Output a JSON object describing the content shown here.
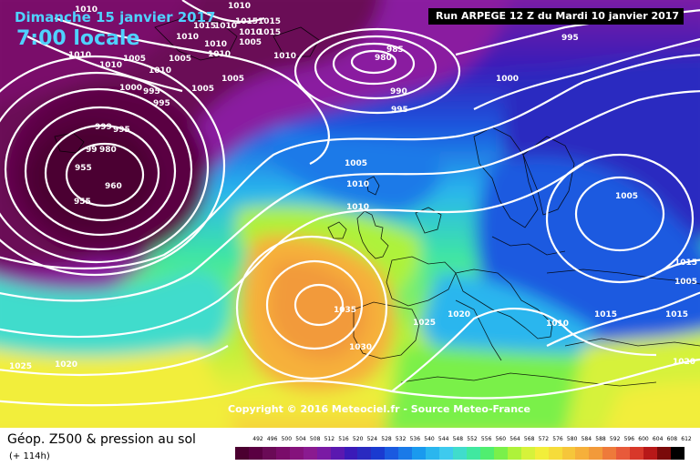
{
  "header": {
    "date": "Dimanche 15 janvier 2017",
    "time": "7:00 locale",
    "run": "Run ARPEGE 12 Z du Mardi 10 janvier 2017"
  },
  "copyright": "Copyright © 2016 Meteociel.fr - Source Meteo-France",
  "footer": {
    "product": "Géop. Z500 & pression au sol",
    "forecast_hour": "(+ 114h)"
  },
  "scale": {
    "ticks": [
      "492",
      "496",
      "500",
      "504",
      "508",
      "512",
      "516",
      "520",
      "524",
      "528",
      "532",
      "536",
      "540",
      "544",
      "548",
      "552",
      "556",
      "560",
      "564",
      "568",
      "572",
      "576",
      "580",
      "584",
      "588",
      "592",
      "596",
      "600",
      "604",
      "608",
      "612"
    ],
    "colors": [
      "#4b0030",
      "#5a0042",
      "#6a0a56",
      "#7a0c6a",
      "#85127c",
      "#8a1a90",
      "#7a1aa4",
      "#5a18b0",
      "#3a1ab8",
      "#2a2ac0",
      "#1a3ad0",
      "#1a5ae0",
      "#1a7ae8",
      "#1a9aee",
      "#2ab6ee",
      "#3ecaee",
      "#40dccc",
      "#40e8a0",
      "#50ee70",
      "#7af04a",
      "#aef23a",
      "#d6f23a",
      "#f2ee3a",
      "#f6dc3a",
      "#f6c63a",
      "#f6b03a",
      "#f29a3a",
      "#ee7a3a",
      "#e85a3a",
      "#d8382a",
      "#b81818",
      "#7a0a0a",
      "#000000"
    ]
  },
  "isobars": [
    {
      "label": "1010"
    },
    {
      "label": "1015"
    },
    {
      "label": "1010"
    },
    {
      "label": "1015"
    },
    {
      "label": "1015"
    },
    {
      "label": "1010"
    },
    {
      "label": "1015"
    },
    {
      "label": "1010"
    },
    {
      "label": "1005"
    },
    {
      "label": "1010"
    },
    {
      "label": "1010"
    },
    {
      "label": "1005"
    },
    {
      "label": "1010"
    },
    {
      "label": "1005"
    },
    {
      "label": "1010"
    },
    {
      "label": "1005"
    },
    {
      "label": "1000"
    },
    {
      "label": "995"
    },
    {
      "label": "1005"
    },
    {
      "label": "985"
    },
    {
      "label": "980"
    },
    {
      "label": "990"
    },
    {
      "label": "995"
    },
    {
      "label": "1000"
    },
    {
      "label": "995"
    },
    {
      "label": "1005"
    },
    {
      "label": "1010"
    },
    {
      "label": "995"
    },
    {
      "label": "999"
    },
    {
      "label": "995"
    },
    {
      "label": "99"
    },
    {
      "label": "980"
    },
    {
      "label": "955"
    },
    {
      "label": "960"
    },
    {
      "label": "955"
    },
    {
      "label": "1005"
    },
    {
      "label": "1010"
    },
    {
      "label": "1015"
    },
    {
      "label": "1005"
    },
    {
      "label": "1035"
    },
    {
      "label": "1025"
    },
    {
      "label": "1020"
    },
    {
      "label": "1010"
    },
    {
      "label": "1015"
    },
    {
      "label": "1015"
    },
    {
      "label": "1030"
    },
    {
      "label": "1025"
    },
    {
      "label": "1020"
    },
    {
      "label": "1020"
    },
    {
      "label": "1010"
    },
    {
      "label": "1010"
    },
    {
      "label": "1010"
    }
  ]
}
